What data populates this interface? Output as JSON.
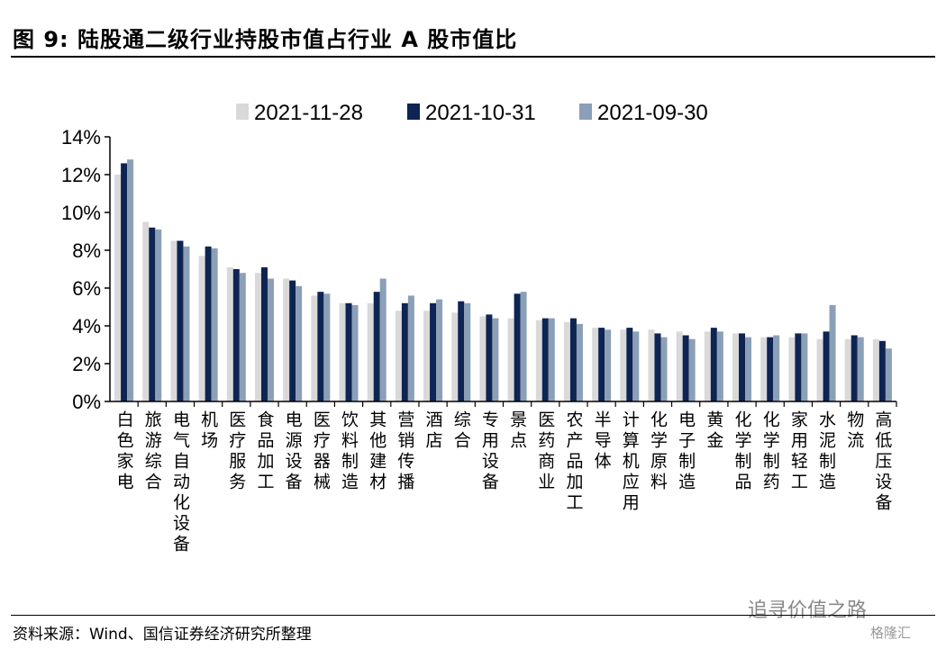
{
  "page": {
    "title": "图 9:  陆股通二级行业持股市值占行业 A 股市值比",
    "source": "资料来源：Wind、国信证券经济研究所整理",
    "watermark": "追寻价值之路",
    "badge": "格隆汇"
  },
  "chart_data": {
    "type": "bar",
    "title": "",
    "xlabel": "",
    "ylabel": "",
    "ylim": [
      0,
      14
    ],
    "ytick_labels": [
      "0%",
      "2%",
      "4%",
      "6%",
      "8%",
      "10%",
      "12%",
      "14%"
    ],
    "legend_position": "top",
    "grid": false,
    "categories": [
      "白色家电",
      "旅游综合",
      "电气自动化设备",
      "机场",
      "医疗服务",
      "食品加工",
      "电源设备",
      "医疗器械",
      "饮料制造",
      "其他建材",
      "营销传播",
      "酒店",
      "综合",
      "专用设备",
      "景点",
      "医药商业",
      "农产品加工",
      "半导体",
      "计算机应用",
      "化学原料",
      "电子制造",
      "黄金",
      "化学制品",
      "化学制药",
      "家用轻工",
      "水泥制造",
      "物流",
      "高低压设备"
    ],
    "series": [
      {
        "name": "2021-11-28",
        "color": "#d9d9d9",
        "values": [
          12.0,
          9.5,
          8.5,
          7.7,
          7.1,
          6.8,
          6.5,
          5.6,
          5.2,
          5.2,
          4.8,
          4.8,
          4.7,
          4.5,
          4.4,
          4.3,
          4.2,
          3.9,
          3.8,
          3.8,
          3.7,
          3.7,
          3.6,
          3.4,
          3.4,
          3.3,
          3.3,
          3.3
        ]
      },
      {
        "name": "2021-10-31",
        "color": "#0e2452",
        "values": [
          12.6,
          9.2,
          8.5,
          8.2,
          7.0,
          7.1,
          6.4,
          5.8,
          5.2,
          5.8,
          5.2,
          5.2,
          5.3,
          4.6,
          5.7,
          4.4,
          4.4,
          3.9,
          3.9,
          3.6,
          3.5,
          3.9,
          3.6,
          3.4,
          3.6,
          3.7,
          3.5,
          3.2
        ]
      },
      {
        "name": "2021-09-30",
        "color": "#8b9fb7",
        "values": [
          12.8,
          9.1,
          8.2,
          8.1,
          6.8,
          6.5,
          6.1,
          5.7,
          5.1,
          6.5,
          5.6,
          5.4,
          5.2,
          4.4,
          5.8,
          4.4,
          4.1,
          3.8,
          3.7,
          3.4,
          3.3,
          3.7,
          3.4,
          3.5,
          3.6,
          5.1,
          3.4,
          2.8
        ]
      }
    ]
  }
}
